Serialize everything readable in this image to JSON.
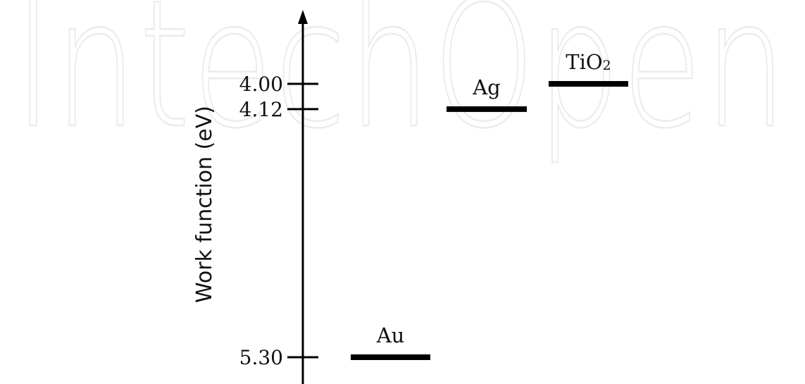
{
  "watermark": "IntechOpen",
  "chart_data": {
    "type": "energy-level",
    "ylabel": "Work function (eV)",
    "y_axis": {
      "direction": "decreasing-up",
      "range": [
        3.6,
        5.4
      ],
      "arrow": "up"
    },
    "yticks": [
      {
        "value": 4.0,
        "label": "4.00"
      },
      {
        "value": 4.12,
        "label": "4.12"
      },
      {
        "value": 5.3,
        "label": "5.30"
      }
    ],
    "levels": [
      {
        "name": "Au",
        "value": 5.3
      },
      {
        "name": "Ag",
        "value": 4.12
      },
      {
        "name": "TiO",
        "subscript": "2",
        "value": 4.0
      }
    ],
    "grid": false,
    "legend": "none"
  },
  "colors": {
    "ink": "#000000",
    "watermark": "#ebebeb"
  }
}
